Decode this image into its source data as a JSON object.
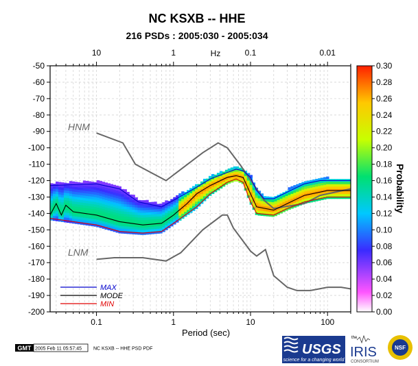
{
  "chart_data": {
    "type": "heatmap",
    "title": "NC KSXB -- HHE",
    "subtitle": "216 PSDs : 2005:030 - 2005:034",
    "xlabel": "Period (sec)",
    "top_axis_label": "Hz",
    "colorbar_label": "Probability",
    "xscale": "log",
    "xlim": [
      0.025,
      200
    ],
    "ylim": [
      -200,
      -50
    ],
    "yticks": [
      -50,
      -60,
      -70,
      -80,
      -90,
      -100,
      -110,
      -120,
      -130,
      -140,
      -150,
      -160,
      -170,
      -180,
      -190,
      -200
    ],
    "xticks": [
      {
        "value": 0.1,
        "label": "0.1"
      },
      {
        "value": 1,
        "label": "1"
      },
      {
        "value": 10,
        "label": "10"
      },
      {
        "value": 100,
        "label": "100"
      }
    ],
    "top_ticks": [
      {
        "value": 0.1,
        "label": "10"
      },
      {
        "value": 1,
        "label": "1"
      },
      {
        "value": 10,
        "label": "0.1"
      },
      {
        "value": 100,
        "label": "0.01"
      }
    ],
    "colorbar_ticks": [
      "0.30",
      "0.28",
      "0.26",
      "0.24",
      "0.22",
      "0.20",
      "0.18",
      "0.16",
      "0.14",
      "0.12",
      "0.10",
      "0.08",
      "0.06",
      "0.04",
      "0.02",
      "0.00"
    ],
    "colorbar_range": [
      0,
      0.3
    ],
    "grid": true,
    "legend": {
      "position": "bottom-left",
      "entries": [
        {
          "label": "MAX",
          "color": "#0000cc"
        },
        {
          "label": "MODE",
          "color": "#000000"
        },
        {
          "label": "MIN",
          "color": "#e00000"
        }
      ]
    },
    "reference_curves": [
      {
        "label": "HNM",
        "points": [
          [
            0.1,
            -91
          ],
          [
            0.22,
            -97
          ],
          [
            0.32,
            -110
          ],
          [
            0.8,
            -120
          ],
          [
            2.4,
            -103
          ],
          [
            3.8,
            -97
          ],
          [
            5,
            -100
          ],
          [
            7.5,
            -111
          ],
          [
            12,
            -125
          ],
          [
            15,
            -132
          ],
          [
            20,
            -137
          ],
          [
            50,
            -134
          ],
          [
            80,
            -129
          ],
          [
            200,
            -125
          ]
        ]
      },
      {
        "label": "LNM",
        "points": [
          [
            0.1,
            -168
          ],
          [
            0.17,
            -167
          ],
          [
            0.4,
            -167
          ],
          [
            0.8,
            -169
          ],
          [
            1.24,
            -164
          ],
          [
            2.4,
            -150
          ],
          [
            4.3,
            -141
          ],
          [
            5,
            -141
          ],
          [
            6,
            -149
          ],
          [
            10,
            -163
          ],
          [
            12,
            -166
          ],
          [
            15.6,
            -162
          ],
          [
            20,
            -178
          ],
          [
            30,
            -185
          ],
          [
            40,
            -187
          ],
          [
            60,
            -187
          ],
          [
            100,
            -185
          ],
          [
            150,
            -185
          ],
          [
            200,
            -186
          ]
        ]
      }
    ],
    "series": [
      {
        "name": "MAX",
        "points": [
          [
            0.025,
            -123
          ],
          [
            0.1,
            -122
          ],
          [
            0.2,
            -125
          ],
          [
            0.35,
            -133
          ],
          [
            0.7,
            -136
          ],
          [
            1,
            -132
          ],
          [
            2,
            -124
          ],
          [
            3,
            -119
          ],
          [
            5,
            -115
          ],
          [
            6.5,
            -113
          ],
          [
            8,
            -114
          ],
          [
            10,
            -118
          ],
          [
            12,
            -126
          ],
          [
            15,
            -131
          ],
          [
            20,
            -131
          ],
          [
            30,
            -127
          ],
          [
            50,
            -122
          ],
          [
            80,
            -120
          ],
          [
            150,
            -120
          ],
          [
            200,
            -120
          ]
        ]
      },
      {
        "name": "MODE",
        "points": [
          [
            0.025,
            -141
          ],
          [
            0.03,
            -134
          ],
          [
            0.035,
            -141
          ],
          [
            0.04,
            -135
          ],
          [
            0.05,
            -139
          ],
          [
            0.1,
            -141
          ],
          [
            0.2,
            -145
          ],
          [
            0.4,
            -147
          ],
          [
            0.7,
            -146
          ],
          [
            1,
            -141
          ],
          [
            1.5,
            -134
          ],
          [
            2,
            -128
          ],
          [
            3,
            -123
          ],
          [
            5,
            -118
          ],
          [
            6.5,
            -117
          ],
          [
            8,
            -118
          ],
          [
            10,
            -128
          ],
          [
            12,
            -136
          ],
          [
            20,
            -138
          ],
          [
            30,
            -134
          ],
          [
            50,
            -129
          ],
          [
            100,
            -126
          ],
          [
            200,
            -126
          ]
        ]
      },
      {
        "name": "MIN",
        "points": [
          [
            0.025,
            -143
          ],
          [
            0.1,
            -147
          ],
          [
            0.2,
            -151
          ],
          [
            0.4,
            -152
          ],
          [
            0.7,
            -151
          ],
          [
            1,
            -146
          ],
          [
            2,
            -136
          ],
          [
            3,
            -128
          ],
          [
            5,
            -121
          ],
          [
            6.5,
            -119
          ],
          [
            8,
            -121
          ],
          [
            10,
            -133
          ],
          [
            12,
            -140
          ],
          [
            20,
            -141
          ],
          [
            30,
            -137
          ],
          [
            50,
            -133
          ],
          [
            100,
            -130
          ],
          [
            200,
            -130
          ]
        ]
      }
    ]
  },
  "footer": {
    "gmt_label": "GMT",
    "timestamp": "2005 Feb 11 05:57:45",
    "caption": "NC KSXB -- HHE PSD PDF"
  },
  "logos": {
    "usgs_text": "USGS",
    "usgs_tagline": "science for a changing world",
    "iris_the": "the",
    "iris_text": "IRIS",
    "iris_sub": "CONSORTIUM",
    "nsf_text": "NSF"
  }
}
